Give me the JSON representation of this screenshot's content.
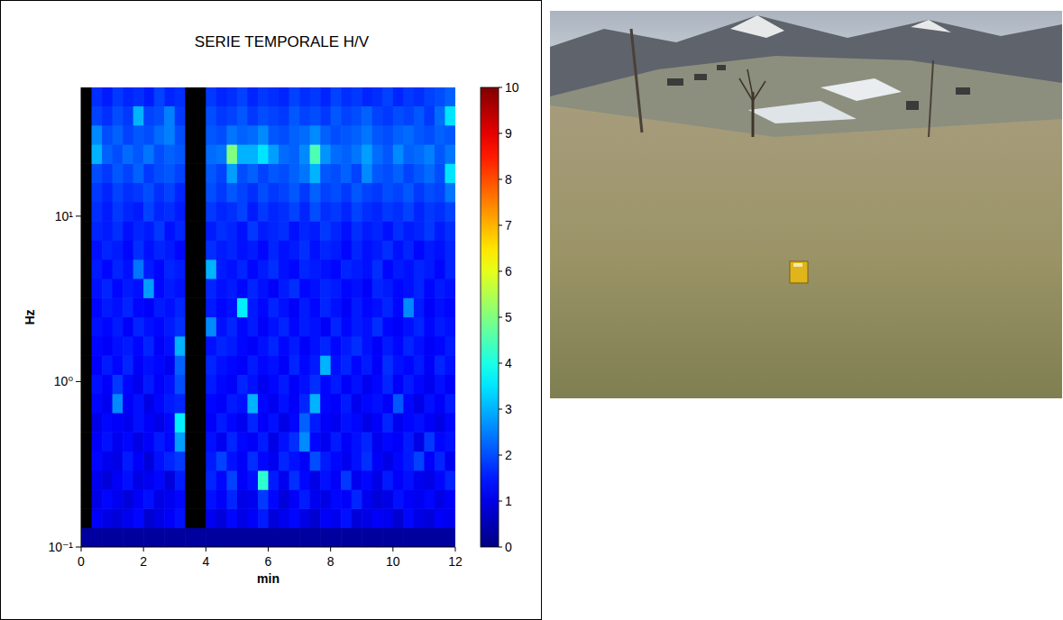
{
  "chart_data": {
    "type": "heatmap",
    "title": "SERIE TEMPORALE H/V",
    "x_label": "min",
    "y_label": "Hz",
    "log": "y",
    "xlim": [
      0,
      12
    ],
    "xticks": [
      0,
      2,
      4,
      6,
      8,
      10,
      12
    ],
    "ylim": [
      0.1,
      60
    ],
    "yticks": [
      {
        "value": 0.1,
        "label": "10⁻¹"
      },
      {
        "value": 1,
        "label": "10⁰"
      },
      {
        "value": 10,
        "label": "10¹"
      }
    ],
    "x_edges": [
      0,
      0.333,
      0.667,
      1,
      1.333,
      1.667,
      2,
      2.333,
      2.667,
      3,
      3.333,
      3.667,
      4,
      4.333,
      4.667,
      5,
      5.333,
      5.667,
      6,
      6.333,
      6.667,
      7,
      7.333,
      7.667,
      8,
      8.333,
      8.667,
      9,
      9.333,
      9.667,
      10,
      10.333,
      10.667,
      11,
      11.333,
      11.667,
      12
    ],
    "y_edges": [
      0.1,
      0.131,
      0.171,
      0.223,
      0.291,
      0.38,
      0.497,
      0.649,
      0.847,
      1.106,
      1.445,
      1.887,
      2.464,
      3.218,
      4.203,
      5.489,
      7.169,
      9.363,
      12.23,
      15.97,
      20.85,
      27.23,
      35.57,
      46.45,
      60
    ],
    "colorbar": {
      "lim": [
        0,
        10
      ],
      "ticks": [
        0,
        1,
        2,
        3,
        4,
        5,
        6,
        7,
        8,
        9,
        10
      ]
    },
    "cells": [
      [
        0.3,
        0.3,
        0.3,
        0.3,
        0.3,
        0.3,
        0.3,
        0.3,
        0.3,
        0.3,
        0.3,
        0.3,
        0.3,
        0.3,
        0.3,
        0.3,
        0.3,
        0.3,
        0.3,
        0.3,
        0.3,
        0.3,
        0.3,
        0.3,
        0.3,
        0.3,
        0.3,
        0.3,
        0.3,
        0.3,
        0.3,
        0.3,
        0.3,
        0.3,
        0.3,
        0.3
      ],
      [
        null,
        1.2,
        1.0,
        0.9,
        1.1,
        1.3,
        0.8,
        1.0,
        1.2,
        1.4,
        null,
        null,
        1.1,
        0.9,
        1.3,
        1.0,
        1.2,
        1.5,
        0.9,
        1.1,
        1.3,
        1.0,
        0.8,
        1.2,
        1.1,
        1.4,
        0.9,
        1.0,
        1.2,
        1.1,
        0.8,
        1.3,
        1.0,
        0.9,
        1.2,
        1.1
      ],
      [
        null,
        1.0,
        1.3,
        1.1,
        0.9,
        1.2,
        1.4,
        1.0,
        1.1,
        1.3,
        null,
        null,
        1.4,
        1.2,
        1.6,
        1.0,
        1.1,
        1.8,
        1.3,
        0.9,
        1.2,
        1.5,
        1.1,
        1.0,
        1.3,
        1.2,
        1.6,
        1.1,
        0.9,
        1.0,
        1.4,
        1.2,
        1.1,
        1.3,
        1.0,
        1.2
      ],
      [
        null,
        1.1,
        0.9,
        1.2,
        1.4,
        1.0,
        1.1,
        1.3,
        0.9,
        1.5,
        null,
        null,
        1.6,
        1.3,
        1.9,
        1.2,
        1.4,
        4.2,
        1.5,
        1.1,
        1.7,
        1.3,
        1.0,
        1.4,
        1.2,
        1.8,
        1.1,
        1.3,
        1.0,
        1.5,
        1.2,
        1.4,
        1.1,
        1.0,
        1.3,
        1.6
      ],
      [
        null,
        1.3,
        1.1,
        1.0,
        1.5,
        1.2,
        0.9,
        1.4,
        1.6,
        1.8,
        null,
        null,
        1.5,
        1.9,
        1.4,
        1.2,
        1.7,
        1.3,
        1.1,
        1.6,
        1.4,
        1.2,
        2.0,
        1.5,
        1.3,
        1.1,
        1.4,
        1.7,
        1.2,
        1.0,
        1.3,
        1.5,
        1.9,
        1.2,
        1.6,
        1.1
      ],
      [
        null,
        1.2,
        1.4,
        1.1,
        1.3,
        1.0,
        1.2,
        1.5,
        1.3,
        2.8,
        null,
        null,
        1.4,
        1.1,
        1.6,
        1.3,
        1.2,
        1.5,
        1.0,
        1.4,
        1.7,
        2.6,
        1.3,
        1.1,
        1.5,
        1.2,
        1.4,
        1.6,
        1.1,
        1.3,
        1.2,
        1.5,
        1.0,
        1.8,
        1.3,
        1.4
      ],
      [
        null,
        1.0,
        1.3,
        1.2,
        1.1,
        1.4,
        1.2,
        1.0,
        1.3,
        3.6,
        null,
        null,
        1.2,
        1.5,
        1.3,
        1.1,
        1.6,
        1.2,
        1.4,
        1.0,
        1.3,
        2.2,
        1.5,
        1.2,
        1.1,
        1.4,
        1.3,
        1.0,
        1.2,
        1.6,
        1.1,
        1.3,
        1.4,
        1.2,
        1.0,
        1.3
      ],
      [
        null,
        1.3,
        1.1,
        2.6,
        1.2,
        1.4,
        1.0,
        1.3,
        1.5,
        1.6,
        null,
        null,
        1.3,
        1.2,
        1.5,
        1.4,
        3.0,
        1.3,
        1.1,
        1.4,
        1.2,
        1.6,
        3.0,
        1.3,
        1.2,
        1.5,
        1.1,
        1.3,
        1.4,
        1.2,
        2.1,
        1.3,
        1.0,
        1.4,
        1.2,
        1.5
      ],
      [
        null,
        1.4,
        1.2,
        1.8,
        1.3,
        1.1,
        1.5,
        1.2,
        1.4,
        2.0,
        null,
        null,
        1.5,
        1.3,
        1.2,
        1.6,
        1.4,
        1.1,
        1.3,
        1.5,
        1.2,
        1.4,
        1.7,
        1.3,
        1.5,
        1.2,
        1.4,
        1.1,
        1.3,
        1.6,
        1.2,
        1.5,
        1.3,
        1.1,
        1.4,
        1.2
      ],
      [
        null,
        1.2,
        1.5,
        1.3,
        1.6,
        1.2,
        1.4,
        1.3,
        1.1,
        2.2,
        null,
        null,
        1.6,
        1.4,
        1.3,
        1.2,
        1.5,
        1.3,
        1.4,
        1.2,
        1.6,
        1.3,
        1.5,
        3.0,
        1.4,
        1.6,
        1.3,
        1.5,
        1.2,
        1.7,
        1.4,
        1.3,
        1.5,
        1.2,
        1.6,
        1.4
      ],
      [
        null,
        1.3,
        1.2,
        1.4,
        1.5,
        1.3,
        1.6,
        1.2,
        1.4,
        3.0,
        null,
        null,
        1.4,
        1.6,
        1.5,
        1.3,
        1.2,
        1.4,
        1.6,
        1.3,
        1.5,
        1.2,
        1.4,
        1.6,
        1.3,
        1.5,
        1.7,
        1.4,
        1.2,
        1.5,
        1.3,
        1.6,
        1.4,
        1.2,
        1.3,
        1.5
      ],
      [
        null,
        1.4,
        1.3,
        1.5,
        1.2,
        1.6,
        1.4,
        1.3,
        1.5,
        1.7,
        null,
        null,
        2.6,
        1.4,
        1.6,
        1.3,
        1.5,
        1.2,
        1.4,
        1.6,
        1.3,
        1.5,
        1.4,
        1.2,
        1.6,
        1.3,
        1.5,
        1.4,
        1.7,
        1.3,
        1.2,
        1.4,
        1.6,
        1.3,
        1.5,
        1.4
      ],
      [
        null,
        1.3,
        1.5,
        1.4,
        1.6,
        1.3,
        1.2,
        1.5,
        1.4,
        1.6,
        null,
        null,
        1.5,
        1.3,
        1.4,
        3.6,
        1.5,
        1.3,
        1.6,
        1.4,
        1.2,
        1.5,
        1.3,
        1.6,
        1.4,
        1.2,
        1.5,
        1.3,
        1.4,
        1.6,
        1.3,
        2.6,
        1.5,
        1.2,
        1.4,
        1.3
      ],
      [
        null,
        1.4,
        1.6,
        1.3,
        1.5,
        1.4,
        2.8,
        1.3,
        1.5,
        1.4,
        null,
        null,
        1.6,
        1.4,
        1.5,
        1.3,
        1.6,
        1.4,
        1.2,
        1.5,
        1.7,
        1.3,
        1.4,
        1.6,
        1.5,
        1.3,
        1.4,
        1.2,
        1.6,
        1.5,
        1.3,
        1.4,
        1.6,
        1.3,
        1.5,
        1.4
      ],
      [
        null,
        1.5,
        1.3,
        1.6,
        1.4,
        2.4,
        1.5,
        1.3,
        1.6,
        1.5,
        null,
        null,
        3.0,
        1.5,
        1.4,
        1.6,
        1.3,
        1.5,
        1.7,
        1.4,
        1.3,
        1.6,
        1.5,
        1.4,
        1.3,
        1.6,
        1.5,
        1.4,
        1.7,
        1.3,
        1.5,
        1.4,
        1.6,
        1.5,
        1.3,
        1.6
      ],
      [
        null,
        1.4,
        1.6,
        1.5,
        1.3,
        1.7,
        1.4,
        1.6,
        1.5,
        1.3,
        null,
        null,
        1.7,
        1.5,
        1.6,
        1.4,
        1.5,
        1.3,
        1.6,
        1.4,
        1.5,
        1.7,
        1.4,
        1.6,
        1.5,
        1.3,
        1.6,
        1.4,
        1.5,
        1.7,
        1.4,
        1.6,
        1.3,
        1.5,
        1.4,
        1.6
      ],
      [
        null,
        1.6,
        1.5,
        1.7,
        1.4,
        1.6,
        1.5,
        1.8,
        1.4,
        1.6,
        null,
        null,
        1.5,
        1.7,
        1.6,
        1.4,
        1.8,
        1.5,
        1.6,
        1.7,
        1.4,
        1.6,
        1.5,
        1.8,
        1.6,
        1.4,
        1.7,
        1.5,
        1.6,
        1.4,
        1.7,
        1.5,
        1.6,
        1.8,
        1.5,
        1.7
      ],
      [
        null,
        1.7,
        1.5,
        1.8,
        1.6,
        1.5,
        1.9,
        1.6,
        1.7,
        1.5,
        null,
        null,
        1.8,
        1.6,
        1.7,
        1.9,
        1.5,
        1.8,
        1.6,
        1.7,
        1.9,
        1.6,
        2.0,
        1.7,
        1.8,
        1.6,
        1.9,
        1.7,
        1.6,
        1.8,
        1.7,
        1.9,
        1.6,
        1.8,
        1.7,
        1.9
      ],
      [
        null,
        1.8,
        1.6,
        1.9,
        1.7,
        1.8,
        2.0,
        1.7,
        1.9,
        1.6,
        null,
        null,
        2.0,
        1.8,
        2.1,
        1.9,
        1.7,
        2.0,
        1.8,
        1.9,
        2.1,
        1.8,
        2.2,
        1.9,
        2.0,
        1.8,
        2.1,
        1.9,
        1.8,
        2.0,
        1.9,
        2.1,
        1.8,
        2.0,
        1.9,
        2.4
      ],
      [
        null,
        2.0,
        1.8,
        2.1,
        1.9,
        2.2,
        1.8,
        2.0,
        2.1,
        1.9,
        null,
        null,
        2.1,
        1.9,
        2.8,
        2.0,
        2.2,
        1.9,
        2.1,
        2.0,
        2.2,
        2.4,
        3.0,
        2.1,
        2.0,
        2.2,
        1.9,
        2.6,
        2.1,
        2.0,
        2.2,
        1.9,
        2.1,
        2.3,
        2.0,
        3.5
      ],
      [
        null,
        3.0,
        2.2,
        2.0,
        2.3,
        2.1,
        2.4,
        2.0,
        2.2,
        2.1,
        null,
        null,
        2.3,
        2.4,
        5.0,
        3.0,
        3.0,
        3.5,
        2.8,
        2.3,
        2.2,
        2.6,
        4.5,
        2.7,
        2.3,
        2.2,
        2.4,
        2.8,
        2.3,
        2.1,
        2.6,
        2.2,
        2.3,
        2.5,
        2.1,
        2.4
      ],
      [
        null,
        2.6,
        2.0,
        2.2,
        1.9,
        2.1,
        2.0,
        2.3,
        2.5,
        2.0,
        null,
        null,
        2.1,
        2.0,
        2.4,
        2.2,
        2.3,
        2.6,
        2.1,
        2.0,
        2.2,
        2.3,
        2.6,
        2.2,
        2.0,
        2.1,
        2.2,
        2.4,
        2.1,
        2.0,
        2.2,
        2.3,
        2.1,
        2.0,
        2.2,
        2.1
      ],
      [
        null,
        1.9,
        1.7,
        2.0,
        1.8,
        3.0,
        1.9,
        2.0,
        2.5,
        1.8,
        null,
        null,
        2.0,
        1.8,
        1.9,
        2.1,
        1.8,
        2.0,
        1.9,
        1.8,
        2.1,
        1.9,
        2.0,
        1.8,
        2.1,
        1.9,
        2.0,
        2.2,
        1.9,
        1.8,
        2.0,
        1.9,
        2.1,
        1.8,
        2.3,
        3.5
      ],
      [
        null,
        1.7,
        1.5,
        1.8,
        1.6,
        1.7,
        1.5,
        1.9,
        1.6,
        1.7,
        null,
        null,
        1.8,
        1.6,
        1.7,
        1.9,
        1.6,
        1.8,
        1.7,
        1.6,
        1.9,
        1.7,
        1.8,
        1.6,
        1.9,
        1.7,
        1.8,
        1.6,
        1.7,
        1.9,
        1.6,
        1.8,
        1.7,
        1.9,
        2.0,
        2.2
      ]
    ]
  }
}
